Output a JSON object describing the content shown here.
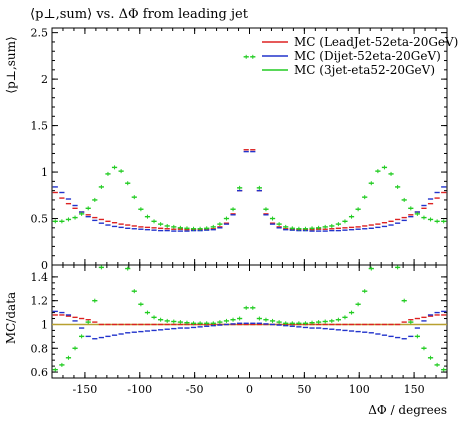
{
  "chart_data": {
    "type": "scatter",
    "title": "⟨p⊥,sum⟩ vs. ΔΦ from leading jet",
    "top_panel": {
      "ylabel": "⟨p⊥,sum⟩",
      "xlim": [
        -180,
        180
      ],
      "ylim": [
        0,
        2.55
      ],
      "yticks": [
        "0",
        "0.5",
        "1",
        "1.5",
        "2",
        "2.5"
      ]
    },
    "ratio_panel": {
      "ylabel": "MC/data",
      "xlim": [
        -180,
        180
      ],
      "ylim": [
        0.55,
        1.5
      ],
      "yticks": [
        "0.6",
        "0.8",
        "1",
        "1.2",
        "1.4"
      ],
      "reference": 1.0
    },
    "x_axis": {
      "label": "ΔΦ / degrees",
      "ticks": [
        "-150",
        "-100",
        "-50",
        "0",
        "50",
        "100",
        "150"
      ]
    },
    "legend_position": "top-right",
    "x": [
      -177,
      -171,
      -165,
      -159,
      -153,
      -147,
      -141,
      -135,
      -129,
      -123,
      -117,
      -111,
      -105,
      -99,
      -93,
      -87,
      -81,
      -75,
      -69,
      -63,
      -57,
      -51,
      -45,
      -39,
      -33,
      -27,
      -21,
      -15,
      -9,
      -3,
      3,
      9,
      15,
      21,
      27,
      33,
      39,
      45,
      51,
      57,
      63,
      69,
      75,
      81,
      87,
      93,
      99,
      105,
      111,
      117,
      123,
      129,
      135,
      141,
      147,
      153,
      159,
      165,
      171,
      177
    ],
    "series": [
      {
        "name": "MC (LeadJet-52eta-20GeV)",
        "color": "#dd2222",
        "values": [
          0.78,
          0.72,
          0.66,
          0.61,
          0.57,
          0.54,
          0.51,
          0.49,
          0.47,
          0.455,
          0.44,
          0.43,
          0.42,
          0.41,
          0.405,
          0.4,
          0.395,
          0.39,
          0.385,
          0.385,
          0.38,
          0.38,
          0.38,
          0.385,
          0.39,
          0.41,
          0.45,
          0.55,
          0.8,
          1.24,
          1.24,
          0.8,
          0.55,
          0.45,
          0.41,
          0.39,
          0.385,
          0.38,
          0.38,
          0.38,
          0.385,
          0.385,
          0.39,
          0.395,
          0.4,
          0.405,
          0.41,
          0.42,
          0.43,
          0.44,
          0.455,
          0.47,
          0.49,
          0.51,
          0.54,
          0.57,
          0.61,
          0.66,
          0.72,
          0.78
        ],
        "ratio": [
          1.08,
          1.08,
          1.07,
          1.06,
          1.05,
          1.04,
          1.02,
          1.0,
          1.0,
          1.0,
          1.0,
          1.0,
          1.0,
          1.0,
          1.0,
          1.0,
          1.0,
          1.0,
          1.0,
          1.0,
          1.0,
          1.0,
          1.0,
          1.0,
          1.0,
          1.0,
          1.0,
          1.0,
          1.0,
          1.0,
          1.0,
          1.0,
          1.0,
          1.0,
          1.0,
          1.0,
          1.0,
          1.0,
          1.0,
          1.0,
          1.0,
          1.0,
          1.0,
          1.0,
          1.0,
          1.0,
          1.0,
          1.0,
          1.0,
          1.0,
          1.0,
          1.0,
          1.0,
          1.02,
          1.04,
          1.05,
          1.06,
          1.07,
          1.08,
          1.08
        ]
      },
      {
        "name": "MC (Dijet-52eta-20GeV)",
        "color": "#2233cc",
        "values": [
          0.84,
          0.78,
          0.71,
          0.64,
          0.57,
          0.52,
          0.48,
          0.45,
          0.43,
          0.415,
          0.405,
          0.395,
          0.39,
          0.385,
          0.38,
          0.375,
          0.37,
          0.37,
          0.365,
          0.365,
          0.365,
          0.37,
          0.37,
          0.375,
          0.38,
          0.4,
          0.44,
          0.54,
          0.8,
          1.22,
          1.22,
          0.8,
          0.54,
          0.44,
          0.4,
          0.38,
          0.375,
          0.37,
          0.37,
          0.365,
          0.365,
          0.365,
          0.37,
          0.37,
          0.375,
          0.38,
          0.385,
          0.39,
          0.395,
          0.405,
          0.415,
          0.43,
          0.45,
          0.48,
          0.52,
          0.57,
          0.64,
          0.71,
          0.78,
          0.84
        ],
        "ratio": [
          1.11,
          1.1,
          1.08,
          1.03,
          0.97,
          0.9,
          0.88,
          0.89,
          0.9,
          0.91,
          0.92,
          0.93,
          0.935,
          0.94,
          0.945,
          0.95,
          0.955,
          0.96,
          0.965,
          0.97,
          0.97,
          0.975,
          0.98,
          0.985,
          0.99,
          0.995,
          1.0,
          1.005,
          1.01,
          1.01,
          1.01,
          1.01,
          1.005,
          1.0,
          0.995,
          0.99,
          0.985,
          0.98,
          0.975,
          0.97,
          0.97,
          0.965,
          0.96,
          0.955,
          0.95,
          0.945,
          0.94,
          0.935,
          0.93,
          0.92,
          0.91,
          0.9,
          0.89,
          0.88,
          0.9,
          0.97,
          1.03,
          1.08,
          1.1,
          1.11
        ]
      },
      {
        "name": "MC (3jet-eta52-20GeV)",
        "color": "#22cc22",
        "values": [
          0.47,
          0.47,
          0.49,
          0.51,
          0.55,
          0.61,
          0.7,
          0.84,
          0.98,
          1.05,
          1.01,
          0.88,
          0.73,
          0.6,
          0.52,
          0.47,
          0.44,
          0.42,
          0.41,
          0.4,
          0.395,
          0.39,
          0.39,
          0.395,
          0.41,
          0.44,
          0.5,
          0.6,
          0.83,
          2.24,
          2.24,
          0.83,
          0.6,
          0.5,
          0.44,
          0.41,
          0.395,
          0.39,
          0.39,
          0.395,
          0.4,
          0.41,
          0.42,
          0.44,
          0.47,
          0.52,
          0.6,
          0.73,
          0.88,
          1.01,
          1.05,
          0.98,
          0.84,
          0.7,
          0.61,
          0.55,
          0.51,
          0.49,
          0.47,
          0.47
        ],
        "ratio": [
          0.62,
          0.66,
          0.72,
          0.8,
          0.9,
          1.02,
          1.2,
          1.48,
          1.6,
          1.6,
          1.6,
          1.47,
          1.28,
          1.17,
          1.1,
          1.06,
          1.04,
          1.03,
          1.025,
          1.02,
          1.015,
          1.01,
          1.01,
          1.01,
          1.01,
          1.02,
          1.03,
          1.04,
          1.05,
          1.14,
          1.14,
          1.05,
          1.04,
          1.03,
          1.02,
          1.01,
          1.01,
          1.01,
          1.01,
          1.015,
          1.02,
          1.025,
          1.03,
          1.04,
          1.06,
          1.1,
          1.17,
          1.28,
          1.47,
          1.6,
          1.6,
          1.6,
          1.48,
          1.2,
          1.02,
          0.9,
          0.8,
          0.72,
          0.66,
          0.62
        ]
      }
    ],
    "reference_line_color": "#b8a030"
  }
}
